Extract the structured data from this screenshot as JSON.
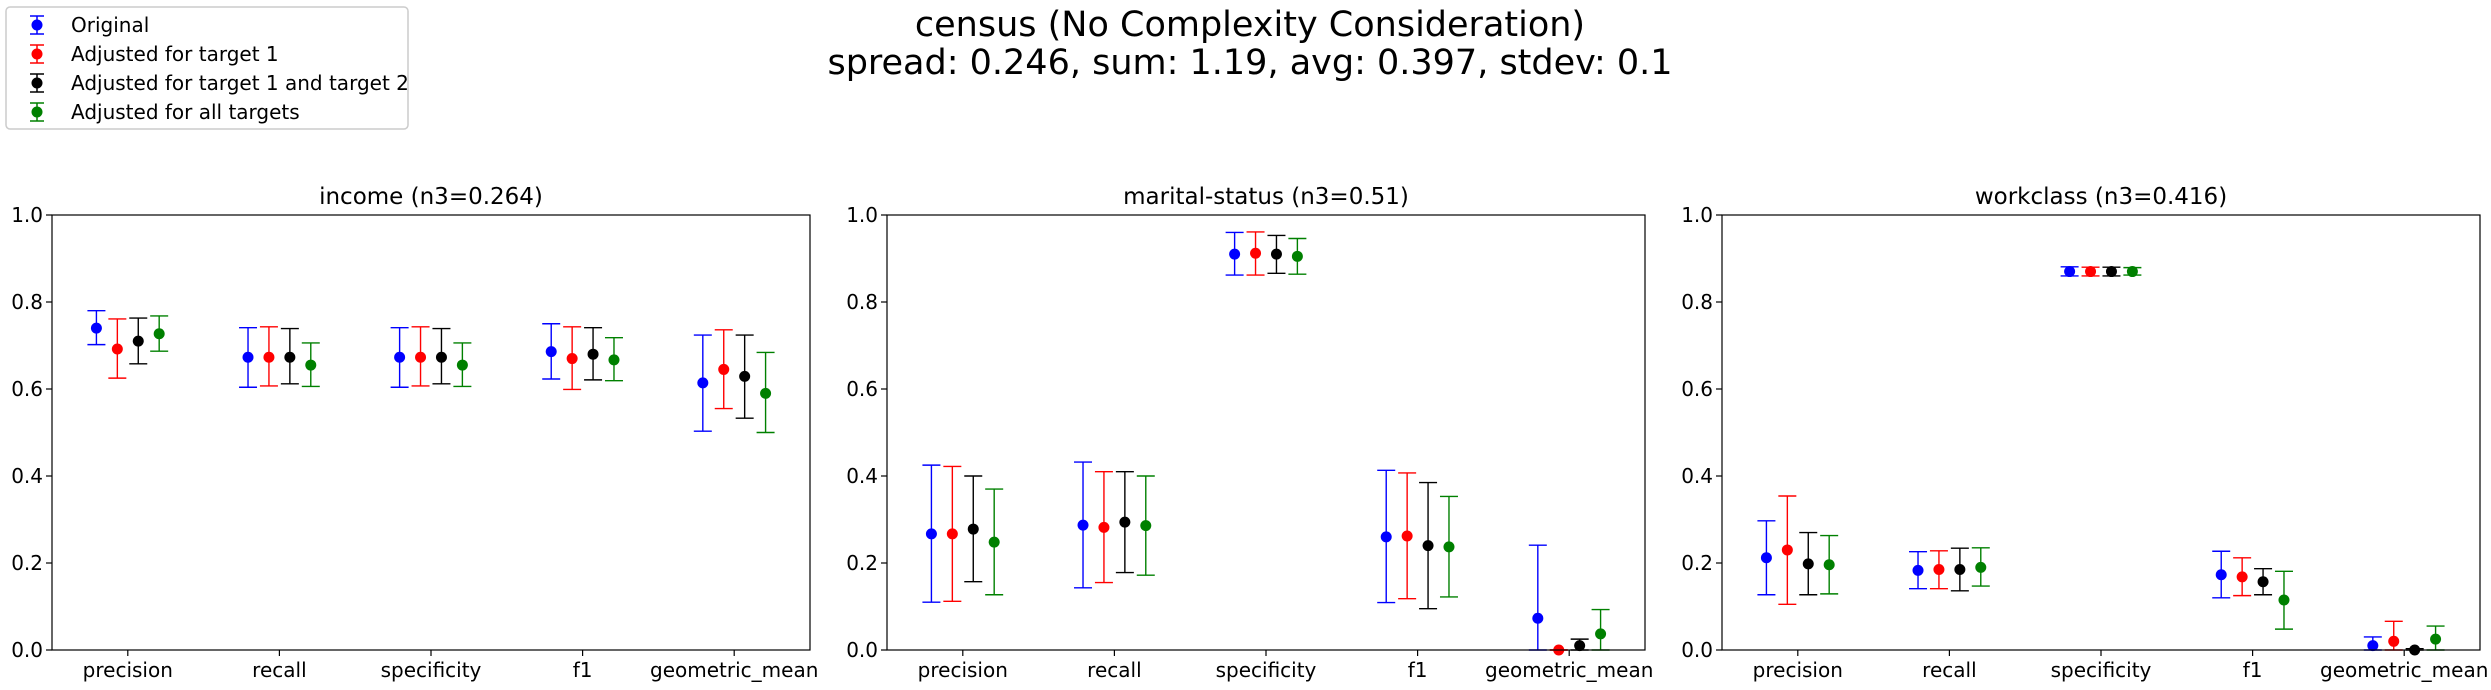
{
  "figure": {
    "title_line1": "census (No Complexity Consideration)",
    "title_line2": "spread: 0.246, sum: 1.19, avg: 0.397, stdev: 0.1"
  },
  "legend": {
    "placement": "upper-left",
    "entries": [
      {
        "label": "Original",
        "color": "#0000ff"
      },
      {
        "label": "Adjusted for target 1",
        "color": "#ff0000"
      },
      {
        "label": "Adjusted for target 1 and target 2",
        "color": "#000000"
      },
      {
        "label": "Adjusted for all targets",
        "color": "#008000"
      }
    ]
  },
  "chart_data": [
    {
      "type": "scatter",
      "title": "income (n3=0.264)",
      "categories": [
        "precision",
        "recall",
        "specificity",
        "f1",
        "geometric_mean"
      ],
      "ylim": [
        0,
        1
      ],
      "yticks": [
        "0.0",
        "0.2",
        "0.4",
        "0.6",
        "0.8",
        "1.0"
      ],
      "grid": false,
      "series": [
        {
          "name": "Original",
          "color": "#0000ff",
          "values": [
            0.74,
            0.673,
            0.673,
            0.686,
            0.614
          ],
          "err_low": [
            0.702,
            0.604,
            0.604,
            0.623,
            0.503
          ],
          "err_high": [
            0.78,
            0.741,
            0.741,
            0.75,
            0.724
          ]
        },
        {
          "name": "Adjusted for target 1",
          "color": "#ff0000",
          "values": [
            0.692,
            0.673,
            0.673,
            0.67,
            0.645
          ],
          "err_low": [
            0.625,
            0.607,
            0.607,
            0.599,
            0.555
          ],
          "err_high": [
            0.761,
            0.743,
            0.743,
            0.743,
            0.736
          ]
        },
        {
          "name": "Adjusted for target 1 and target 2",
          "color": "#000000",
          "values": [
            0.71,
            0.673,
            0.673,
            0.68,
            0.629
          ],
          "err_low": [
            0.658,
            0.612,
            0.612,
            0.621,
            0.533
          ],
          "err_high": [
            0.763,
            0.739,
            0.739,
            0.741,
            0.724
          ]
        },
        {
          "name": "Adjusted for all targets",
          "color": "#008000",
          "values": [
            0.727,
            0.655,
            0.655,
            0.667,
            0.59
          ],
          "err_low": [
            0.687,
            0.606,
            0.606,
            0.619,
            0.5
          ],
          "err_high": [
            0.768,
            0.706,
            0.706,
            0.718,
            0.684
          ]
        }
      ]
    },
    {
      "type": "scatter",
      "title": "marital-status (n3=0.51)",
      "categories": [
        "precision",
        "recall",
        "specificity",
        "f1",
        "geometric_mean"
      ],
      "ylim": [
        0,
        1
      ],
      "yticks": [
        "0.0",
        "0.2",
        "0.4",
        "0.6",
        "0.8",
        "1.0"
      ],
      "grid": false,
      "series": [
        {
          "name": "Original",
          "color": "#0000ff",
          "values": [
            0.267,
            0.287,
            0.91,
            0.26,
            0.073
          ],
          "err_low": [
            0.11,
            0.143,
            0.862,
            0.109,
            0.0
          ],
          "err_high": [
            0.425,
            0.432,
            0.96,
            0.413,
            0.241
          ]
        },
        {
          "name": "Adjusted for target 1",
          "color": "#ff0000",
          "values": [
            0.267,
            0.282,
            0.912,
            0.262,
            0.0
          ],
          "err_low": [
            0.112,
            0.155,
            0.862,
            0.118,
            0.0
          ],
          "err_high": [
            0.422,
            0.41,
            0.961,
            0.407,
            0.0
          ]
        },
        {
          "name": "Adjusted for target 1 and target 2",
          "color": "#000000",
          "values": [
            0.278,
            0.294,
            0.91,
            0.24,
            0.01
          ],
          "err_low": [
            0.157,
            0.178,
            0.866,
            0.095,
            0.0
          ],
          "err_high": [
            0.4,
            0.41,
            0.953,
            0.385,
            0.025
          ]
        },
        {
          "name": "Adjusted for all targets",
          "color": "#008000",
          "values": [
            0.248,
            0.286,
            0.905,
            0.237,
            0.037
          ],
          "err_low": [
            0.127,
            0.172,
            0.864,
            0.122,
            0.0
          ],
          "err_high": [
            0.37,
            0.4,
            0.946,
            0.353,
            0.093
          ]
        }
      ]
    },
    {
      "type": "scatter",
      "title": "workclass (n3=0.416)",
      "categories": [
        "precision",
        "recall",
        "specificity",
        "f1",
        "geometric_mean"
      ],
      "ylim": [
        0,
        1
      ],
      "yticks": [
        "0.0",
        "0.2",
        "0.4",
        "0.6",
        "0.8",
        "1.0"
      ],
      "grid": false,
      "series": [
        {
          "name": "Original",
          "color": "#0000ff",
          "values": [
            0.212,
            0.183,
            0.87,
            0.173,
            0.01
          ],
          "err_low": [
            0.127,
            0.141,
            0.86,
            0.12,
            0.0
          ],
          "err_high": [
            0.297,
            0.226,
            0.881,
            0.227,
            0.03
          ]
        },
        {
          "name": "Adjusted for target 1",
          "color": "#ff0000",
          "values": [
            0.23,
            0.185,
            0.87,
            0.168,
            0.02
          ],
          "err_low": [
            0.105,
            0.141,
            0.86,
            0.125,
            0.0
          ],
          "err_high": [
            0.354,
            0.228,
            0.88,
            0.212,
            0.066
          ]
        },
        {
          "name": "Adjusted for target 1 and target 2",
          "color": "#000000",
          "values": [
            0.198,
            0.185,
            0.87,
            0.157,
            0.0
          ],
          "err_low": [
            0.127,
            0.136,
            0.86,
            0.127,
            0.0
          ],
          "err_high": [
            0.27,
            0.234,
            0.88,
            0.187,
            0.003
          ]
        },
        {
          "name": "Adjusted for all targets",
          "color": "#008000",
          "values": [
            0.196,
            0.19,
            0.87,
            0.115,
            0.025
          ],
          "err_low": [
            0.129,
            0.147,
            0.862,
            0.048,
            0.0
          ],
          "err_high": [
            0.263,
            0.235,
            0.879,
            0.181,
            0.055
          ]
        }
      ]
    }
  ]
}
